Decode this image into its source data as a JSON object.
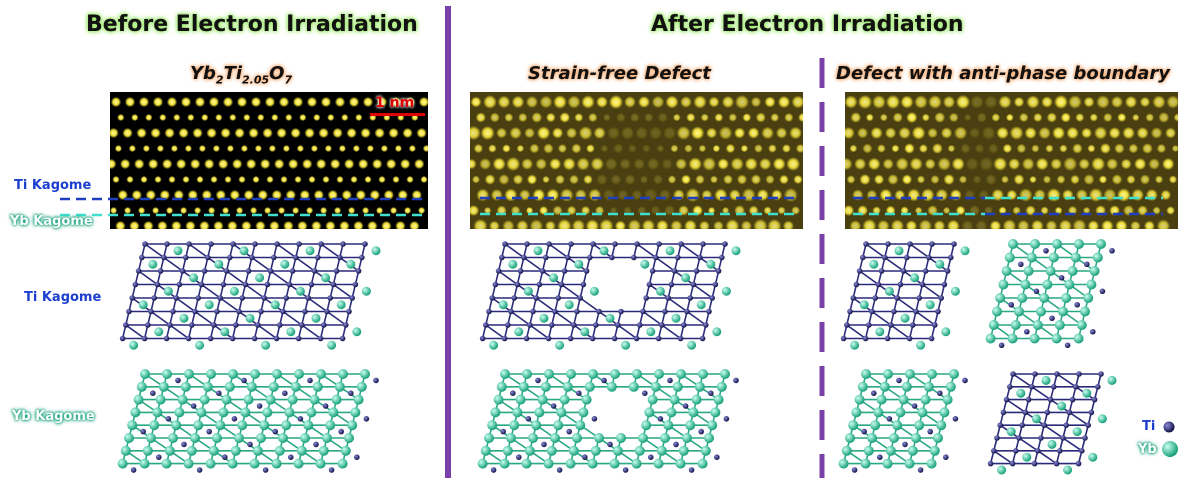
{
  "headers": {
    "before": "Before Electron Irradiation",
    "after": "After Electron Irradiation"
  },
  "subtitles": {
    "material_prefix": "Yb",
    "material_sub1": "2",
    "material_mid": "Ti",
    "material_sub2": "2.05",
    "material_o": "O",
    "material_sub3": "7",
    "strain_free": "Strain-free Defect",
    "anti_phase": "Defect with anti-phase boundary"
  },
  "labels": {
    "ti_kagome_stem": "Ti Kagome",
    "yb_kagome_stem": "Yb Kagome",
    "ti_kagome_model": "Ti Kagome",
    "yb_kagome_model": "Yb Kagome"
  },
  "scale_bar": "1 nm",
  "legend": {
    "ti": "Ti",
    "yb": "Yb"
  },
  "colors": {
    "ti_atom": "#1a1a6e",
    "yb_atom": "#2fd6a8",
    "ti_bond": "#2b2a7a",
    "yb_bond": "#2aa884",
    "ti_dash": "#1f3fbf",
    "yb_dash": "#40e0d0",
    "divider": "#7b3fa8",
    "stem_atom": "#f2e23a"
  }
}
